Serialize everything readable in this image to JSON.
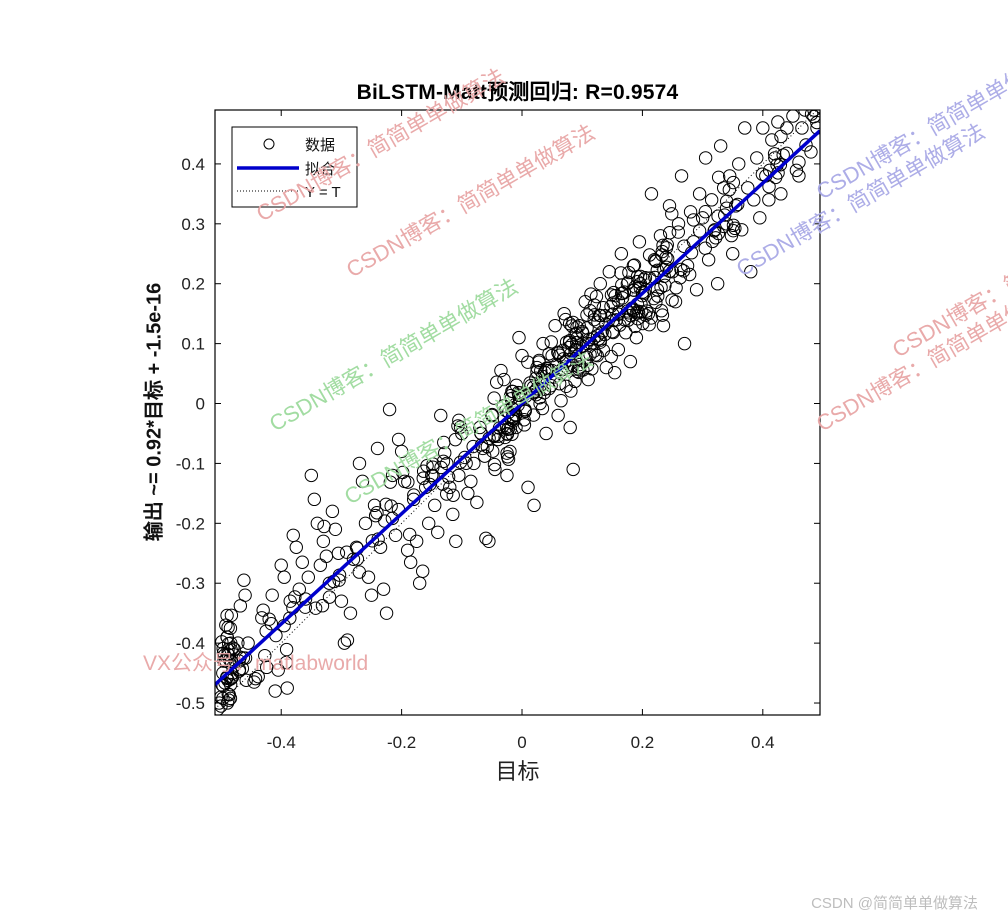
{
  "chart_data": {
    "type": "scatter",
    "title": "BiLSTM-Matt预测回归: R=0.9574",
    "xlabel": "目标",
    "ylabel": "输出 ~= 0.92*目标 + -1.5e-16",
    "xlim": [
      -0.51,
      0.495
    ],
    "ylim": [
      -0.52,
      0.49
    ],
    "xticks": [
      -0.4,
      -0.2,
      0,
      0.2,
      0.4
    ],
    "xtick_labels": [
      "-0.4",
      "-0.2",
      "0",
      "0.2",
      "0.4"
    ],
    "yticks": [
      0.4,
      0.3,
      0.2,
      0.1,
      0,
      -0.1,
      -0.2,
      -0.3,
      -0.4,
      -0.5
    ],
    "ytick_labels": [
      "0.4",
      "0.3",
      "0.2",
      "0.1",
      "0",
      "-0.1",
      "-0.2",
      "-0.3",
      "-0.4",
      "-0.5"
    ],
    "grid": false,
    "legend": {
      "position": "upper-left",
      "entries": [
        {
          "label": "数据",
          "style": "open-circle",
          "color": "#000000"
        },
        {
          "label": "拟合",
          "style": "solid-line",
          "color": "#0000CC"
        },
        {
          "label": "Y = T",
          "style": "dotted-line",
          "color": "#000000"
        }
      ]
    },
    "fit": {
      "slope": 0.92,
      "intercept": -1.5e-16,
      "R": 0.9574,
      "x_range": [
        -0.51,
        0.495
      ],
      "color": "#0000CC"
    },
    "identity_line": {
      "x_range": [
        -0.51,
        0.495
      ],
      "style": "dotted",
      "color": "#000000"
    },
    "series": [
      {
        "name": "数据",
        "marker": "open-circle",
        "points": [
          [
            -0.505,
            -0.51
          ],
          [
            -0.503,
            -0.5
          ],
          [
            -0.5,
            -0.49
          ],
          [
            -0.498,
            -0.47
          ],
          [
            -0.497,
            -0.45
          ],
          [
            -0.495,
            -0.43
          ],
          [
            -0.494,
            -0.42
          ],
          [
            -0.49,
            -0.39
          ],
          [
            -0.492,
            -0.37
          ],
          [
            -0.5,
            -0.505
          ],
          [
            -0.488,
            -0.485
          ],
          [
            -0.484,
            -0.46
          ],
          [
            -0.48,
            -0.44
          ],
          [
            -0.478,
            -0.41
          ],
          [
            -0.472,
            -0.4
          ],
          [
            -0.47,
            -0.43
          ],
          [
            -0.462,
            -0.295
          ],
          [
            -0.46,
            -0.32
          ],
          [
            -0.455,
            -0.4
          ],
          [
            -0.445,
            -0.465
          ],
          [
            -0.43,
            -0.345
          ],
          [
            -0.425,
            -0.38
          ],
          [
            -0.42,
            -0.36
          ],
          [
            -0.415,
            -0.32
          ],
          [
            -0.41,
            -0.48
          ],
          [
            -0.405,
            -0.445
          ],
          [
            -0.4,
            -0.27
          ],
          [
            -0.395,
            -0.29
          ],
          [
            -0.39,
            -0.475
          ],
          [
            -0.385,
            -0.33
          ],
          [
            -0.38,
            -0.22
          ],
          [
            -0.375,
            -0.24
          ],
          [
            -0.37,
            -0.31
          ],
          [
            -0.365,
            -0.265
          ],
          [
            -0.36,
            -0.34
          ],
          [
            -0.355,
            -0.29
          ],
          [
            -0.35,
            -0.12
          ],
          [
            -0.345,
            -0.16
          ],
          [
            -0.34,
            -0.2
          ],
          [
            -0.335,
            -0.27
          ],
          [
            -0.33,
            -0.23
          ],
          [
            -0.325,
            -0.255
          ],
          [
            -0.32,
            -0.3
          ],
          [
            -0.315,
            -0.18
          ],
          [
            -0.31,
            -0.21
          ],
          [
            -0.305,
            -0.25
          ],
          [
            -0.3,
            -0.33
          ],
          [
            -0.295,
            -0.4
          ],
          [
            -0.29,
            -0.395
          ],
          [
            -0.285,
            -0.35
          ],
          [
            -0.28,
            -0.26
          ],
          [
            -0.275,
            -0.24
          ],
          [
            -0.27,
            -0.1
          ],
          [
            -0.265,
            -0.13
          ],
          [
            -0.26,
            -0.2
          ],
          [
            -0.255,
            -0.29
          ],
          [
            -0.25,
            -0.32
          ],
          [
            -0.245,
            -0.17
          ],
          [
            -0.24,
            -0.075
          ],
          [
            -0.235,
            -0.24
          ],
          [
            -0.23,
            -0.31
          ],
          [
            -0.225,
            -0.35
          ],
          [
            -0.22,
            -0.01
          ],
          [
            -0.215,
            -0.12
          ],
          [
            -0.21,
            -0.22
          ],
          [
            -0.205,
            -0.06
          ],
          [
            -0.2,
            -0.08
          ],
          [
            -0.195,
            -0.13
          ],
          [
            -0.19,
            -0.245
          ],
          [
            -0.185,
            -0.265
          ],
          [
            -0.18,
            -0.16
          ],
          [
            -0.175,
            -0.23
          ],
          [
            -0.17,
            -0.3
          ],
          [
            -0.165,
            -0.28
          ],
          [
            -0.16,
            -0.14
          ],
          [
            -0.155,
            -0.2
          ],
          [
            -0.15,
            -0.12
          ],
          [
            -0.145,
            -0.17
          ],
          [
            -0.14,
            -0.215
          ],
          [
            -0.135,
            -0.02
          ],
          [
            -0.13,
            -0.065
          ],
          [
            -0.125,
            -0.1
          ],
          [
            -0.12,
            -0.14
          ],
          [
            -0.115,
            -0.185
          ],
          [
            -0.11,
            -0.23
          ],
          [
            -0.105,
            -0.12
          ],
          [
            -0.1,
            -0.05
          ],
          [
            -0.095,
            -0.09
          ],
          [
            -0.09,
            -0.15
          ],
          [
            -0.085,
            -0.13
          ],
          [
            -0.08,
            -0.1
          ],
          [
            -0.075,
            -0.165
          ],
          [
            -0.07,
            -0.04
          ],
          [
            -0.065,
            -0.075
          ],
          [
            -0.06,
            -0.225
          ],
          [
            -0.055,
            -0.23
          ],
          [
            -0.05,
            -0.02
          ],
          [
            -0.045,
            -0.11
          ],
          [
            -0.04,
            -0.06
          ],
          [
            -0.035,
            0.055
          ],
          [
            -0.03,
            0.04
          ],
          [
            -0.025,
            -0.12
          ],
          [
            -0.02,
            -0.08
          ],
          [
            -0.015,
            0.02
          ],
          [
            -0.01,
            -0.04
          ],
          [
            -0.005,
            0.11
          ],
          [
            0.0,
            0.08
          ],
          [
            0.005,
            -0.01
          ],
          [
            0.01,
            -0.14
          ],
          [
            0.015,
            0.03
          ],
          [
            0.02,
            -0.17
          ],
          [
            0.025,
            0.06
          ],
          [
            0.03,
            0.0
          ],
          [
            0.035,
            0.1
          ],
          [
            0.04,
            -0.05
          ],
          [
            0.045,
            0.025
          ],
          [
            0.05,
            0.08
          ],
          [
            0.055,
            0.13
          ],
          [
            0.06,
            -0.02
          ],
          [
            0.065,
            0.05
          ],
          [
            0.07,
            0.15
          ],
          [
            0.075,
            0.06
          ],
          [
            0.08,
            -0.04
          ],
          [
            0.085,
            -0.11
          ],
          [
            0.09,
            0.09
          ],
          [
            0.095,
            0.13
          ],
          [
            0.1,
            0.12
          ],
          [
            0.105,
            0.17
          ],
          [
            0.11,
            0.04
          ],
          [
            0.115,
            0.1
          ],
          [
            0.12,
            0.14
          ],
          [
            0.125,
            0.08
          ],
          [
            0.13,
            0.2
          ],
          [
            0.135,
            0.16
          ],
          [
            0.14,
            0.06
          ],
          [
            0.145,
            0.22
          ],
          [
            0.15,
            0.12
          ],
          [
            0.155,
            0.18
          ],
          [
            0.16,
            0.09
          ],
          [
            0.165,
            0.25
          ],
          [
            0.17,
            0.14
          ],
          [
            0.175,
            0.2
          ],
          [
            0.18,
            0.07
          ],
          [
            0.185,
            0.23
          ],
          [
            0.19,
            0.11
          ],
          [
            0.195,
            0.27
          ],
          [
            0.2,
            0.18
          ],
          [
            0.205,
            0.21
          ],
          [
            0.21,
            0.15
          ],
          [
            0.215,
            0.35
          ],
          [
            0.22,
            0.24
          ],
          [
            0.225,
            0.19
          ],
          [
            0.23,
            0.28
          ],
          [
            0.235,
            0.13
          ],
          [
            0.24,
            0.26
          ],
          [
            0.245,
            0.33
          ],
          [
            0.25,
            0.22
          ],
          [
            0.255,
            0.17
          ],
          [
            0.26,
            0.3
          ],
          [
            0.265,
            0.38
          ],
          [
            0.27,
            0.1
          ],
          [
            0.275,
            0.23
          ],
          [
            0.28,
            0.32
          ],
          [
            0.285,
            0.27
          ],
          [
            0.29,
            0.19
          ],
          [
            0.295,
            0.35
          ],
          [
            0.3,
            0.31
          ],
          [
            0.305,
            0.41
          ],
          [
            0.31,
            0.24
          ],
          [
            0.315,
            0.34
          ],
          [
            0.32,
            0.29
          ],
          [
            0.325,
            0.2
          ],
          [
            0.33,
            0.43
          ],
          [
            0.335,
            0.36
          ],
          [
            0.34,
            0.3
          ],
          [
            0.345,
            0.38
          ],
          [
            0.35,
            0.25
          ],
          [
            0.355,
            0.33
          ],
          [
            0.36,
            0.4
          ],
          [
            0.365,
            0.29
          ],
          [
            0.37,
            0.46
          ],
          [
            0.375,
            0.36
          ],
          [
            0.38,
            0.22
          ],
          [
            0.385,
            0.34
          ],
          [
            0.39,
            0.41
          ],
          [
            0.395,
            0.31
          ],
          [
            0.4,
            0.46
          ],
          [
            0.405,
            0.38
          ],
          [
            0.41,
            0.34
          ],
          [
            0.415,
            0.44
          ],
          [
            0.42,
            0.41
          ],
          [
            0.425,
            0.47
          ],
          [
            0.43,
            0.35
          ],
          [
            0.44,
            0.46
          ],
          [
            0.45,
            0.48
          ],
          [
            0.46,
            0.38
          ],
          [
            0.465,
            0.46
          ],
          [
            0.47,
            0.49
          ],
          [
            0.48,
            0.42
          ],
          [
            0.485,
            0.49
          ],
          [
            0.49,
            0.46
          ]
        ]
      }
    ]
  },
  "figure": {
    "title": "BiLSTM-Matt预测回归: R=0.9574",
    "xlabel": "目标",
    "ylabel": "输出 ~= 0.92*目标 + -1.5e-16",
    "legend": {
      "data": "数据",
      "fit": "拟合",
      "identity": "Y = T"
    }
  },
  "watermarks": {
    "csdn": "CSDN博客：简简单单做算法",
    "vx": "VX公众号：matlabworld",
    "footer": "CSDN @简简单单做算法",
    "colors": {
      "red": "#E8A6A6",
      "green": "#9DDB9D",
      "blue": "#A9A9E6"
    }
  },
  "colors": {
    "fit_line": "#0000CC",
    "markers": "#000000",
    "axes": "#000000",
    "background": "#FFFFFF"
  }
}
